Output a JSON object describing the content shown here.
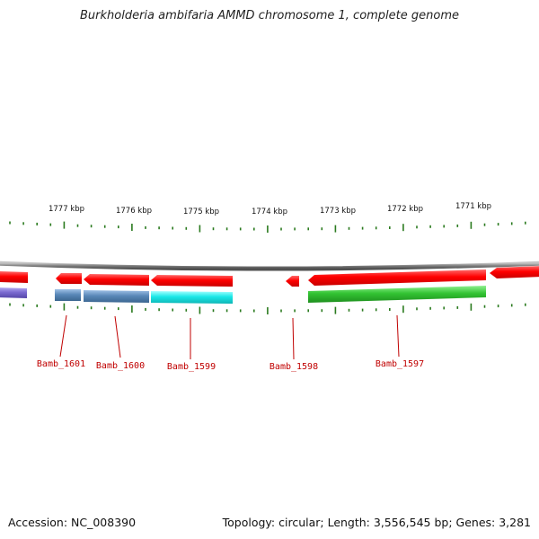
{
  "title": "Burkholderia ambifaria AMMD chromosome 1, complete genome",
  "footer": {
    "accession": "Accession: NC_008390",
    "stats": "Topology: circular; Length: 3,556,545 bp; Genes: 3,281"
  },
  "ticks": [
    {
      "label": "1777 kbp"
    },
    {
      "label": "1776 kbp"
    },
    {
      "label": "1775 kbp"
    },
    {
      "label": "1774 kbp"
    },
    {
      "label": "1773 kbp"
    },
    {
      "label": "1772 kbp"
    },
    {
      "label": "1771 kbp"
    }
  ],
  "genes": [
    {
      "name": "Bamb_1601"
    },
    {
      "name": "Bamb_1600"
    },
    {
      "name": "Bamb_1599"
    },
    {
      "name": "Bamb_1598"
    },
    {
      "name": "Bamb_1597"
    }
  ],
  "colors": {
    "backbone": "#8a8a8a",
    "cds": "#ff1a1a",
    "tick": "#2a7a1e",
    "label": "#c00000",
    "feature_purple": "#7a6ad0",
    "feature_steelblue": "#5a88b8",
    "feature_cyan": "#1ae8e8",
    "feature_green": "#33c433"
  }
}
